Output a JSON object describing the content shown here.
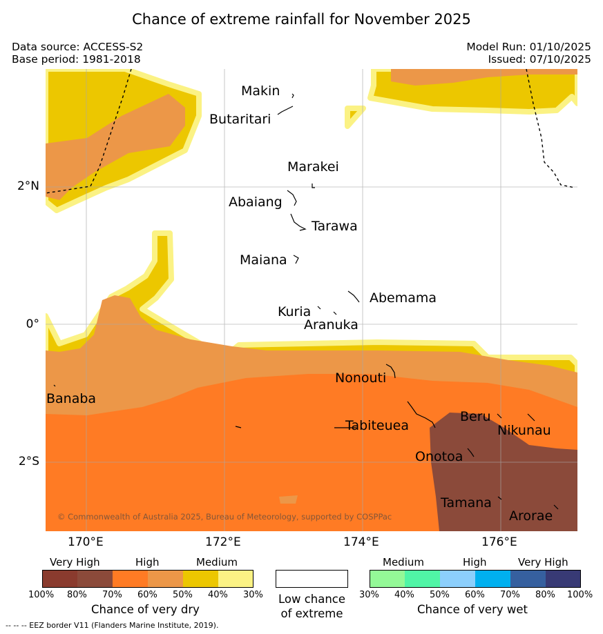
{
  "title": "Chance of extreme rainfall for November 2025",
  "header": {
    "data_source": "Data source: ACCESS-S2",
    "base_period": "Base period: 1981-2018",
    "model_run": "Model Run: 01/10/2025",
    "issued": "Issued: 07/10/2025"
  },
  "map": {
    "latitude_labels": [
      "2°N",
      "0°",
      "2°S"
    ],
    "longitude_labels": [
      "170°E",
      "172°E",
      "174°E",
      "176°E"
    ],
    "places": [
      "Makin",
      "Butaritari",
      "Marakei",
      "Abaiang",
      "Tarawa",
      "Maiana",
      "Abemama",
      "Kuria",
      "Aranuka",
      "Nonouti",
      "Banaba",
      "Tabiteuea",
      "Beru",
      "Nikunau",
      "Onotoa",
      "Tamana",
      "Arorae"
    ],
    "copyright": "© Commonwealth of Australia 2025, Bureau of Meteorology, supported by COSPPac"
  },
  "legend": {
    "dry": {
      "group_labels": [
        "Very High",
        "High",
        "Medium"
      ],
      "colors": [
        "#8a3b2e",
        "#8b4a3a",
        "#ff7b24",
        "#ec9748",
        "#ecc700",
        "#fbf284"
      ],
      "ticks": [
        "100%",
        "80%",
        "70%",
        "60%",
        "50%",
        "40%",
        "30%"
      ],
      "title": "Chance of very dry"
    },
    "low": {
      "line1": "Low chance",
      "line2": "of extreme",
      "color": "#ffffff"
    },
    "wet": {
      "group_labels": [
        "Medium",
        "High",
        "Very High"
      ],
      "colors": [
        "#94f997",
        "#50f5a6",
        "#8ccffc",
        "#00b0ef",
        "#36609f",
        "#383a75"
      ],
      "ticks": [
        "30%",
        "40%",
        "50%",
        "60%",
        "70%",
        "80%",
        "100%"
      ],
      "title": "Chance of very wet"
    }
  },
  "footer": "--  --  -- EEZ border V11 (Flanders Marine Institute, 2019)."
}
